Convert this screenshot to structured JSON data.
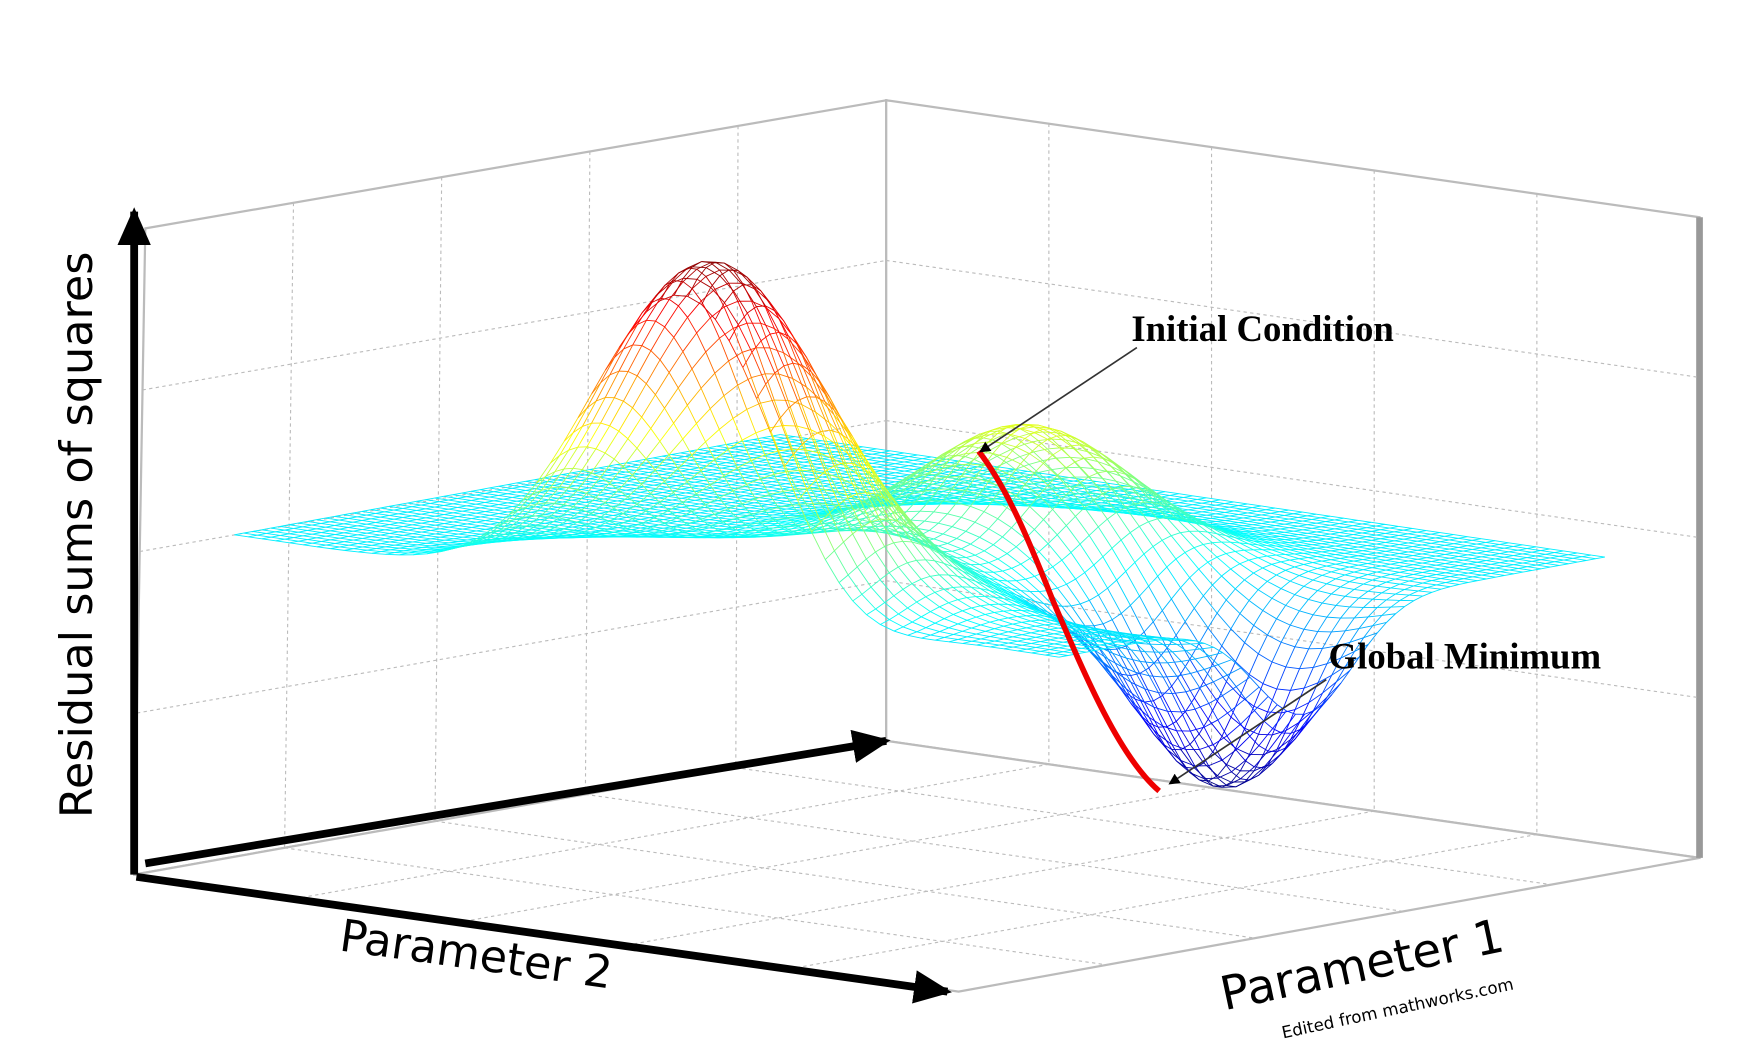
{
  "axes": {
    "vertical_label": "Residual sums of squares",
    "left_label": "Parameter 2",
    "right_label": "Parameter 1"
  },
  "annotations": {
    "initial": "Initial Condition",
    "minimum": "Global Minimum"
  },
  "credit": "Edited from mathworks.com"
}
